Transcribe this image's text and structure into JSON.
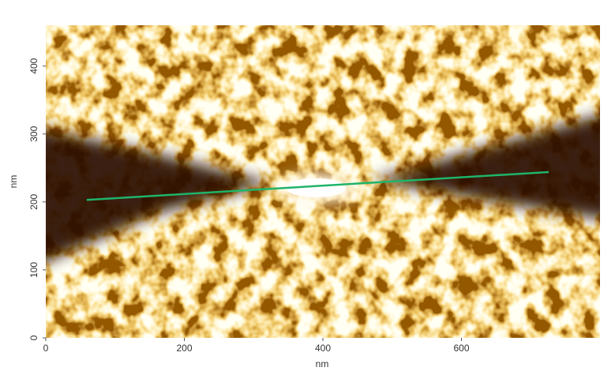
{
  "chart_data": {
    "type": "image",
    "xlabel": "nm",
    "ylabel": "nm",
    "xlim": [
      0,
      800
    ],
    "ylim": [
      0,
      460
    ],
    "xticks": [
      0,
      200,
      400,
      600
    ],
    "yticks": [
      0,
      100,
      200,
      300,
      400
    ],
    "line": {
      "x": [
        59,
        726
      ],
      "y": [
        203,
        244
      ],
      "color": "#1fb46a"
    }
  }
}
